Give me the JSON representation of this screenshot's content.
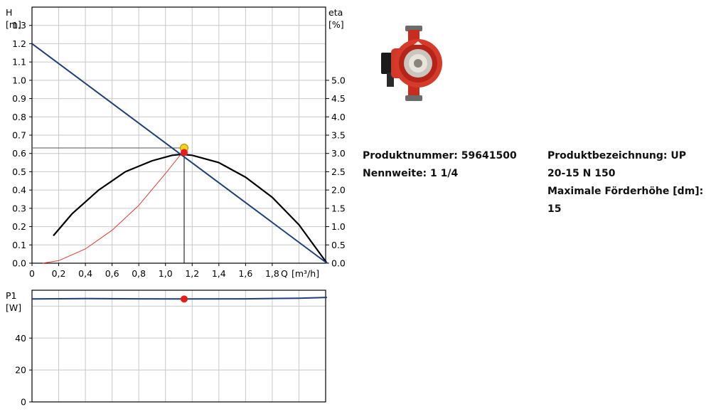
{
  "product": {
    "number_label": "Produktnummer:",
    "number_value": "59641500",
    "nominal_label": "Nennweite:",
    "nominal_value": "1 1/4",
    "designation_label": "Produktbezeichnung:",
    "designation_value": "UP 20-15 N 150",
    "max_head_label": "Maximale Förderhöhe [dm]:",
    "max_head_value": "15"
  },
  "colors": {
    "system_curve": "#1f3f7a",
    "pump_curve": "#000000",
    "efficiency_curve": "#e23b2f",
    "power_curve": "#1f3f7a",
    "duty_point_marker": "#e81c1c",
    "intersection_marker": "#f3d21b",
    "grid": "#c8c8c8"
  },
  "chart_data": [
    {
      "type": "line",
      "x_label": "Q",
      "x_unit": "[m³/h]",
      "y_label": "H",
      "y_unit": "[m]",
      "y2_label": "eta",
      "y2_unit": "[%]",
      "xlim": [
        0,
        2.2
      ],
      "ylim": [
        0,
        1.4
      ],
      "y2lim": [
        0,
        7.0
      ],
      "x_ticks": [
        "0",
        "0,2",
        "0,4",
        "0,6",
        "0,8",
        "1,0",
        "1,2",
        "1,4",
        "1,6",
        "1,8"
      ],
      "x_tick_values": [
        0,
        0.2,
        0.4,
        0.6,
        0.8,
        1.0,
        1.2,
        1.4,
        1.6,
        1.8
      ],
      "y_ticks": [
        "0.0",
        "0.1",
        "0.2",
        "0.3",
        "0.4",
        "0.5",
        "0.6",
        "0.7",
        "0.8",
        "0.9",
        "1.0",
        "1.1",
        "1.2",
        "1.3"
      ],
      "y_tick_values": [
        0,
        0.1,
        0.2,
        0.3,
        0.4,
        0.5,
        0.6,
        0.7,
        0.8,
        0.9,
        1.0,
        1.1,
        1.2,
        1.3
      ],
      "y2_ticks": [
        "0.0",
        "0.5",
        "1.0",
        "1.5",
        "2.0",
        "2.5",
        "3.0",
        "3.5",
        "4.0",
        "4.5",
        "5.0"
      ],
      "y2_tick_values": [
        0,
        0.5,
        1.0,
        1.5,
        2.0,
        2.5,
        3.0,
        3.5,
        4.0,
        4.5,
        5.0
      ],
      "grid": true,
      "series": [
        {
          "key": "system",
          "axis": "left",
          "x": [
            0,
            2.21
          ],
          "y": [
            1.2,
            0.0
          ]
        },
        {
          "key": "pump",
          "axis": "left",
          "x": [
            0.16,
            0.3,
            0.5,
            0.7,
            0.9,
            1.05,
            1.12,
            1.2,
            1.4,
            1.6,
            1.8,
            2.0,
            2.21
          ],
          "y": [
            0.15,
            0.27,
            0.4,
            0.5,
            0.56,
            0.59,
            0.595,
            0.59,
            0.55,
            0.47,
            0.36,
            0.21,
            0.0
          ]
        },
        {
          "key": "efficiency",
          "axis": "right",
          "x": [
            0.08,
            0.2,
            0.4,
            0.6,
            0.8,
            1.0,
            1.12
          ],
          "y": [
            0.0,
            0.07,
            0.39,
            0.9,
            1.58,
            2.45,
            3.0
          ]
        }
      ],
      "duty_point": {
        "x": 1.14,
        "y": 0.605
      },
      "intersection_point": {
        "x": 1.14,
        "y": 0.63
      },
      "reference_lines": {
        "x": 1.14,
        "y": 0.63
      }
    },
    {
      "type": "line",
      "y_label": "P1",
      "y_unit": "[W]",
      "xlim": [
        0,
        2.2
      ],
      "ylim": [
        0,
        70
      ],
      "y_ticks": [
        "0",
        "20",
        "40"
      ],
      "y_tick_values": [
        0,
        20,
        40
      ],
      "grid": true,
      "series": [
        {
          "key": "power",
          "x": [
            0,
            0.4,
            0.8,
            1.14,
            1.6,
            2.0,
            2.21
          ],
          "y": [
            64.5,
            64.8,
            64.6,
            64.5,
            64.6,
            65.0,
            65.5
          ]
        }
      ],
      "duty_point": {
        "x": 1.14,
        "y": 64.5
      }
    }
  ]
}
